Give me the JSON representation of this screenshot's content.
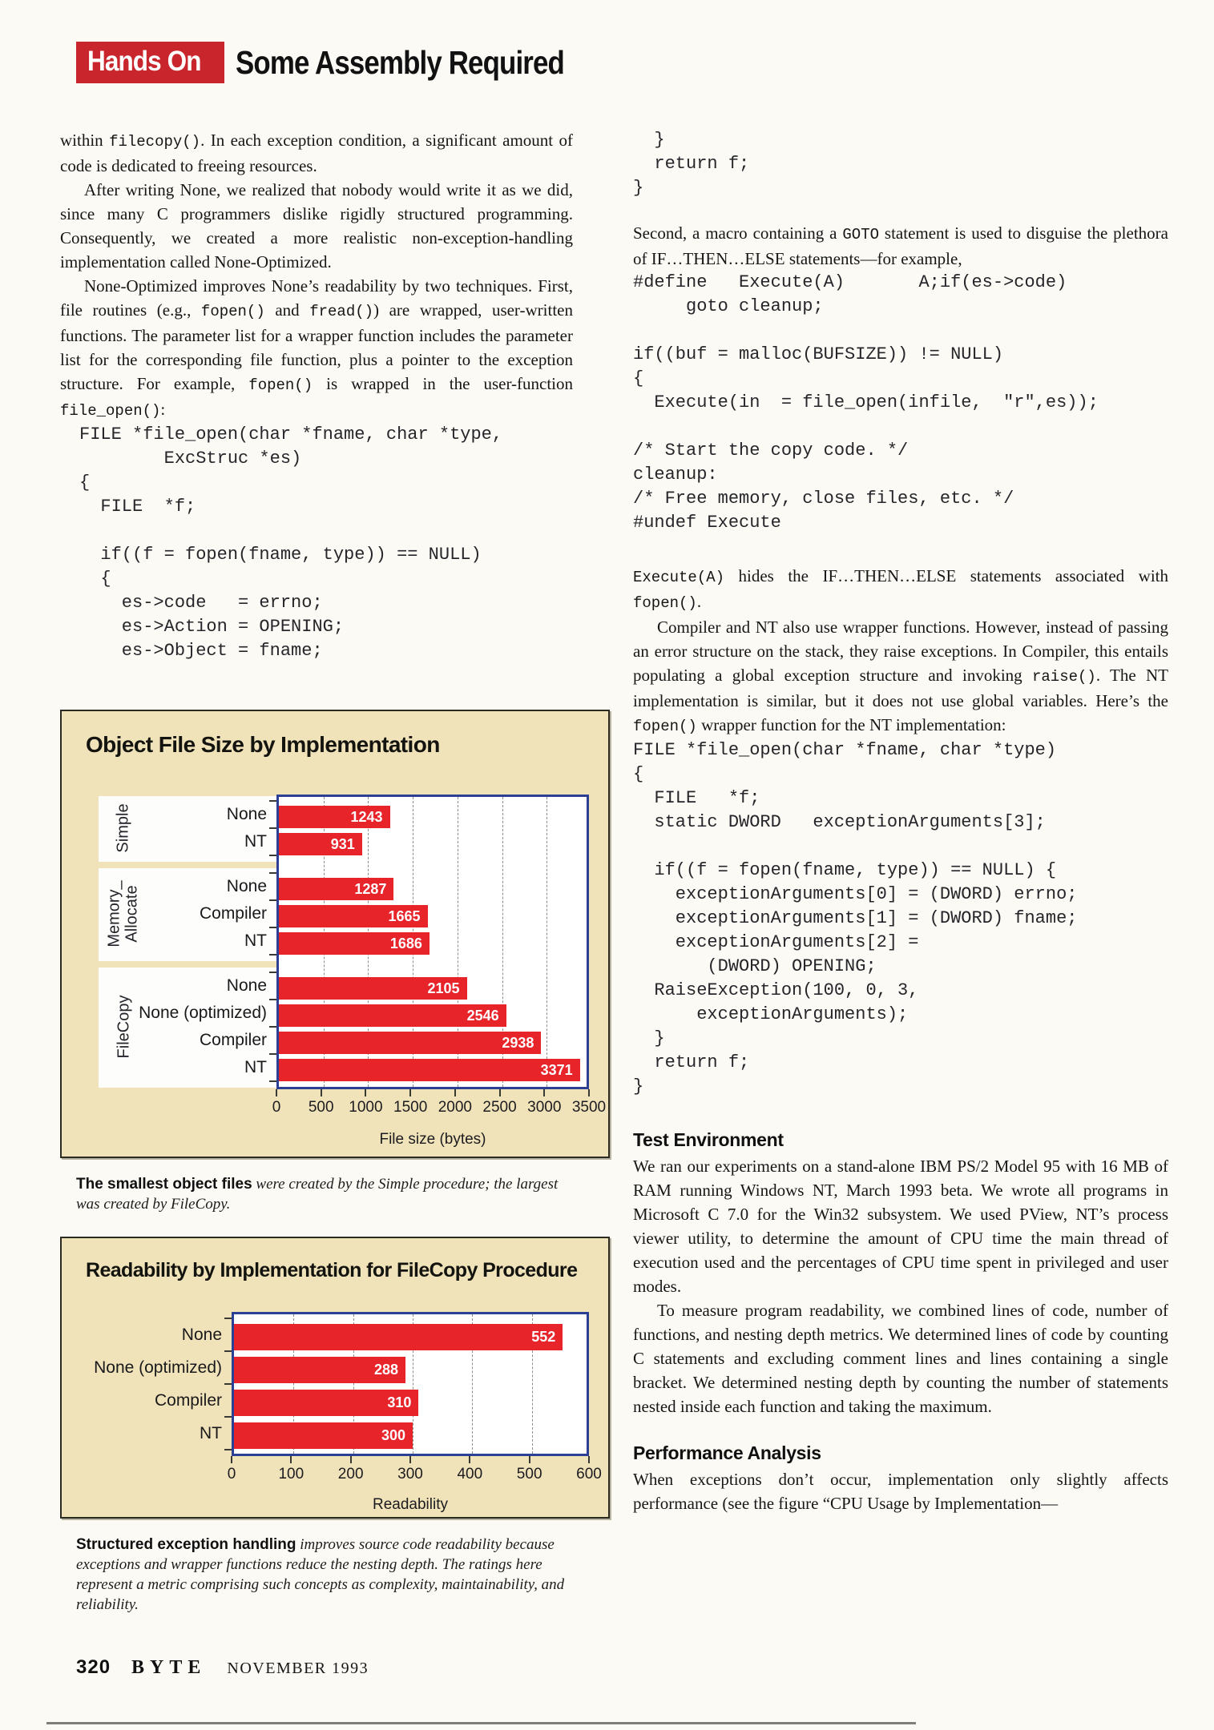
{
  "header": {
    "section": "Hands On",
    "title": "Some Assembly Required"
  },
  "left_column": {
    "paragraphs": [
      "within <code>filecopy()</code>. In each exception condition, a significant amount of code is dedicated to freeing resources.",
      "After writing None, we realized that nobody would write it as we did, since many C programmers dislike rigidly structured programming. Consequently, we created a more realistic non-exception-handling implementation called None-Optimized.",
      "None-Optimized improves None’s readability by two techniques. First, file routines (e.g., <code>fopen()</code> and <code>fread()</code>) are wrapped, user-written functions. The parameter list for a wrapper function includes the parameter list for the corresponding file function, plus a pointer to the exception structure. For example, <code>fopen()</code> is wrapped in the user-function <code>file_open()</code>:"
    ],
    "code_file_open": [
      "FILE *file_open(char *fname, char *type,",
      "        ExcStruc *es)",
      "{",
      "  FILE  *f;",
      "",
      "  if((f = fopen(fname, type)) == NULL)",
      "  {",
      "    es->code   = errno;",
      "    es->Action = OPENING;",
      "    es->Object = fname;"
    ]
  },
  "captions": [
    {
      "lead": "The smallest object files",
      "rest": " were created by the Simple procedure; the largest was created by FileCopy."
    },
    {
      "lead": "Structured exception handling",
      "rest": " improves source code readability because exceptions and wrapper functions reduce the nesting depth. The ratings here represent a metric comprising such concepts as complexity, maintainability, and reliability."
    }
  ],
  "right_column": {
    "code_return": [
      "  }",
      "  return f;",
      "}"
    ],
    "para_macro": "Second, a macro containing a <code>GOTO</code> statement is used to disguise the plethora of IF…THEN…ELSE statements—for example,",
    "code_define": [
      "#define   Execute(A)       A;if(es->code)",
      "     goto cleanup;",
      "",
      "if((buf = malloc(BUFSIZE)) != NULL)",
      "{",
      "  Execute(in  = file_open(infile,  \"r\",es));",
      "",
      "/* Start the copy code. */",
      "cleanup:",
      "/* Free memory, close files, etc. */",
      "#undef Execute"
    ],
    "para_execute": "<code>Execute(A)</code> hides the IF…THEN…ELSE statements associated with <code>fopen()</code>.",
    "para_compiler": "Compiler and NT also use wrapper functions. However, instead of passing an error structure on the stack, they raise exceptions. In Compiler, this entails populating a global exception structure and invoking <code>raise()</code>. The NT implementation is similar, but it does not use global variables. Here’s the <code>fopen()</code> wrapper function for the NT implementation:",
    "code_nt": [
      "FILE *file_open(char *fname, char *type)",
      "{",
      "  FILE   *f;",
      "  static DWORD   exceptionArguments[3];",
      "",
      "  if((f = fopen(fname, type)) == NULL) {",
      "    exceptionArguments[0] = (DWORD) errno;",
      "    exceptionArguments[1] = (DWORD) fname;",
      "    exceptionArguments[2] =",
      "       (DWORD) OPENING;",
      "  RaiseException(100, 0, 3,",
      "      exceptionArguments);",
      "  }",
      "  return f;",
      "}"
    ],
    "heading_test": "Test Environment",
    "para_test_1": "We ran our experiments on a stand-alone IBM PS/2 Model 95 with 16 MB of RAM running Windows NT, March 1993 beta. We wrote all programs in Microsoft C 7.0 for the Win32 subsystem. We used PView, NT’s process viewer utility, to determine the amount of CPU time the main thread of execution used and the percentages of CPU time spent in privileged and user modes.",
    "para_test_2": "To measure program readability, we combined lines of code, number of functions, and nesting depth metrics. We determined lines of code by counting C statements and excluding comment lines and lines containing a single bracket. We determined nesting depth by counting the number of statements nested inside each function and taking the maximum.",
    "heading_perf": "Performance Analysis",
    "para_perf": "When exceptions don’t occur, implementation only slightly affects performance (see the figure “CPU Usage by Implementation—"
  },
  "chart_data": [
    {
      "type": "bar",
      "orientation": "horizontal",
      "title": "Object File Size by Implementation",
      "xlabel": "File size (bytes)",
      "xlim": [
        0,
        3500
      ],
      "xticks": [
        0,
        500,
        1000,
        1500,
        2000,
        2500,
        3000,
        3500
      ],
      "bar_color": "#e8242b",
      "grid": true,
      "groups": [
        {
          "name": "Simple",
          "bars": [
            {
              "label": "None",
              "value": 1243
            },
            {
              "label": "NT",
              "value": 931
            }
          ]
        },
        {
          "name": "Memory_\nAllocate",
          "bars": [
            {
              "label": "None",
              "value": 1287
            },
            {
              "label": "Compiler",
              "value": 1665
            },
            {
              "label": "NT",
              "value": 1686
            }
          ]
        },
        {
          "name": "FileCopy",
          "bars": [
            {
              "label": "None",
              "value": 2105
            },
            {
              "label": "None (optimized)",
              "value": 2546
            },
            {
              "label": "Compiler",
              "value": 2938
            },
            {
              "label": "NT",
              "value": 3371
            }
          ]
        }
      ]
    },
    {
      "type": "bar",
      "orientation": "horizontal",
      "title": "Readability by Implementation for FileCopy Procedure",
      "xlabel": "Readability",
      "xlim": [
        0,
        600
      ],
      "xticks": [
        0,
        100,
        200,
        300,
        400,
        500,
        600
      ],
      "bar_color": "#e8242b",
      "grid": true,
      "groups": [
        {
          "name": "",
          "bars": [
            {
              "label": "None",
              "value": 552
            },
            {
              "label": "None (optimized)",
              "value": 288
            },
            {
              "label": "Compiler",
              "value": 310
            },
            {
              "label": "NT",
              "value": 300
            }
          ]
        }
      ]
    }
  ],
  "footer": {
    "page_number": "320",
    "magazine": "BYTE",
    "issue": "NOVEMBER 1993"
  },
  "colors": {
    "accent_red": "#c9252d",
    "bar_red": "#e8242b",
    "plot_border_blue": "#2b3f94",
    "panel_cream": "#f1e3b9"
  }
}
